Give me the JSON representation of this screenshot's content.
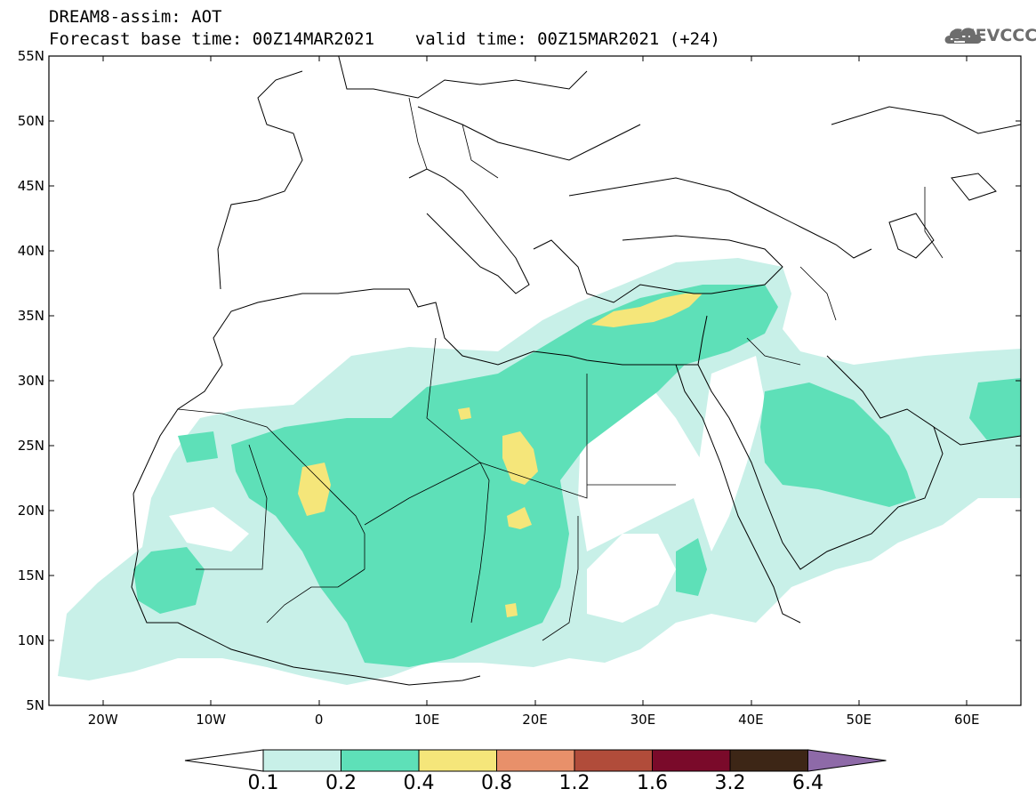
{
  "header": {
    "title_line1": "DREAM8-assim: AOT",
    "title_line2": "Forecast base time: 00Z14MAR2021    valid time: 00Z15MAR2021 (+24)"
  },
  "logo": {
    "text": "SEEVCCC",
    "icon": "cloud-icon"
  },
  "map": {
    "latitude_labels": [
      "55N",
      "50N",
      "45N",
      "40N",
      "35N",
      "30N",
      "25N",
      "20N",
      "15N",
      "10N",
      "5N"
    ],
    "longitude_labels": [
      "20W",
      "10W",
      "0",
      "10E",
      "20E",
      "30E",
      "40E",
      "50E",
      "60E"
    ],
    "lon_range": [
      -25,
      65
    ],
    "lat_range": [
      5,
      55
    ],
    "field": "AOT"
  },
  "colorbar": {
    "labels": [
      "0.1",
      "0.2",
      "0.4",
      "0.8",
      "1.2",
      "1.6",
      "3.2",
      "6.4"
    ],
    "colors": [
      "#ffffff",
      "#c8f0e8",
      "#5ee0b8",
      "#f5e67a",
      "#e8906a",
      "#b14c3a",
      "#7a0a2a",
      "#3d2616",
      "#8e6aa8"
    ]
  }
}
